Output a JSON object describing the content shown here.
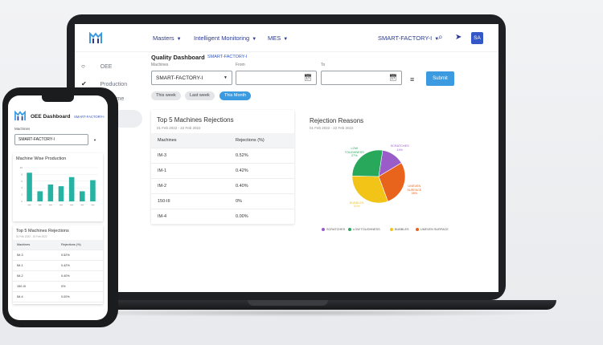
{
  "colors": {
    "accent": "#3c9be0",
    "brand": "#2d3b8f",
    "avatar": "#3457c7",
    "bar": "#26b3a3"
  },
  "laptop": {
    "topbar": {
      "nav": [
        {
          "label": "Masters"
        },
        {
          "label": "Intelligent Monitoring"
        },
        {
          "label": "MES"
        }
      ],
      "factory_selector": "SMART-FACTORY-I",
      "avatar": "SA"
    },
    "sidebar": {
      "items": [
        {
          "label": "OEE"
        },
        {
          "label": "Production"
        },
        {
          "label": "time"
        }
      ]
    },
    "header": {
      "title": "Quality Dashboard",
      "factory_tag": "SMART-FACTORY-I"
    },
    "filters": {
      "machines_label": "Machines",
      "machines_value": "SMART-FACTORY-I",
      "from_label": "From",
      "to_label": "To",
      "submit_label": "Submit",
      "chips": [
        {
          "label": "This week",
          "active": false
        },
        {
          "label": "Last week",
          "active": false
        },
        {
          "label": "This Month",
          "active": true
        }
      ]
    },
    "table_card": {
      "title": "Top 5 Machines Rejections",
      "subtitle": "01 Feb 2022 - 22 Feb 2022",
      "columns": [
        "Machines",
        "Rejections (%)"
      ],
      "rows": [
        [
          "IM-3",
          "0.52%"
        ],
        [
          "IM-1",
          "0.42%"
        ],
        [
          "IM-2",
          "0.40%"
        ],
        [
          "150-III",
          "0%"
        ],
        [
          "IM-4",
          "0.00%"
        ]
      ]
    },
    "pie_card": {
      "title": "Rejection Reasons",
      "subtitle": "01 Feb 2022 - 22 Feb 2022"
    }
  },
  "phone": {
    "title": "OEE Dashboard",
    "factory_tag": "SMART-FACTORY-I",
    "machines_label": "Machines",
    "machines_value": "SMART-FACTORY-I",
    "bar_card": {
      "title": "Machine Wise Production"
    },
    "table_card": {
      "title": "Top 5 Machines Rejections",
      "subtitle": "01 Feb 2022 - 22 Feb 2022",
      "columns": [
        "Machines",
        "Rejections (%)"
      ],
      "rows": [
        [
          "IM-3",
          "0.52%"
        ],
        [
          "IM-1",
          "0.42%"
        ],
        [
          "IM-2",
          "0.40%"
        ],
        [
          "150-III",
          "0%"
        ],
        [
          "IM-4",
          "0.00%"
        ]
      ]
    }
  },
  "chart_data": [
    {
      "type": "pie",
      "title": "Rejection Reasons",
      "slices": [
        {
          "name": "SCRATCHES",
          "value": 14,
          "label": "SCRATCHES\n14%",
          "color": "#9a5cc8"
        },
        {
          "name": "UNEVEN SURFACE",
          "value": 28,
          "label": "UNEVEN SURFACE\n28%",
          "color": "#e8641c"
        },
        {
          "name": "BUBBLES",
          "value": 31,
          "label": "BUBBLES\n31%",
          "color": "#f2c417"
        },
        {
          "name": "LOW TOUGHNESS",
          "value": 27,
          "label": "LOW TOUGHNESS\n27%",
          "color": "#27a85a"
        }
      ],
      "legend": [
        "SCRATCHES",
        "LOW TOUGHNESS",
        "BUBBLES",
        "UNEVEN SURFACE"
      ],
      "legend_position": "bottom"
    },
    {
      "type": "bar",
      "title": "Machine Wise Production",
      "ylim": [
        0,
        10
      ],
      "yticks": [
        "10",
        "8",
        "6",
        "4",
        "2",
        "0"
      ],
      "values": [
        8.5,
        3,
        5,
        4.5,
        7.2,
        3,
        6.3
      ],
      "grid": true
    }
  ]
}
